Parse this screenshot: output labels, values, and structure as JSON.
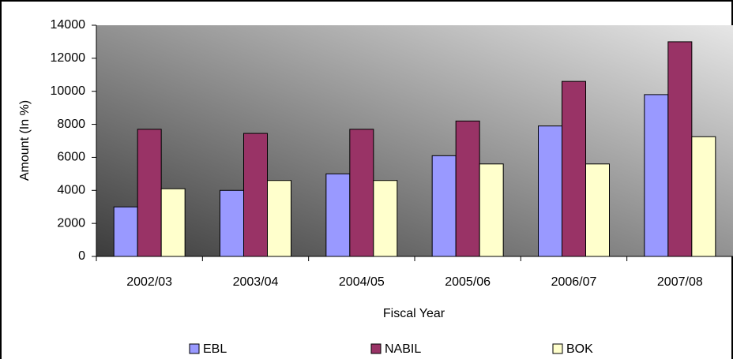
{
  "chart_data": {
    "type": "bar",
    "categories": [
      "2002/03",
      "2003/04",
      "2004/05",
      "2005/06",
      "2006/07",
      "2007/08"
    ],
    "series": [
      {
        "name": "EBL",
        "color": "#9999ff",
        "values": [
          3000,
          4000,
          5000,
          6100,
          7900,
          9800
        ]
      },
      {
        "name": "NABIL",
        "color": "#993366",
        "values": [
          7700,
          7450,
          7700,
          8200,
          10600,
          13000
        ]
      },
      {
        "name": "BOK",
        "color": "#ffffcc",
        "values": [
          4100,
          4600,
          4600,
          5600,
          5600,
          7250
        ]
      }
    ],
    "x_label": "Fiscal Year",
    "y_label": "Amount (In %)",
    "ylim": [
      0,
      14000
    ],
    "yticks": [
      0,
      2000,
      4000,
      6000,
      8000,
      10000,
      12000,
      14000
    ],
    "legend": "bottom"
  }
}
